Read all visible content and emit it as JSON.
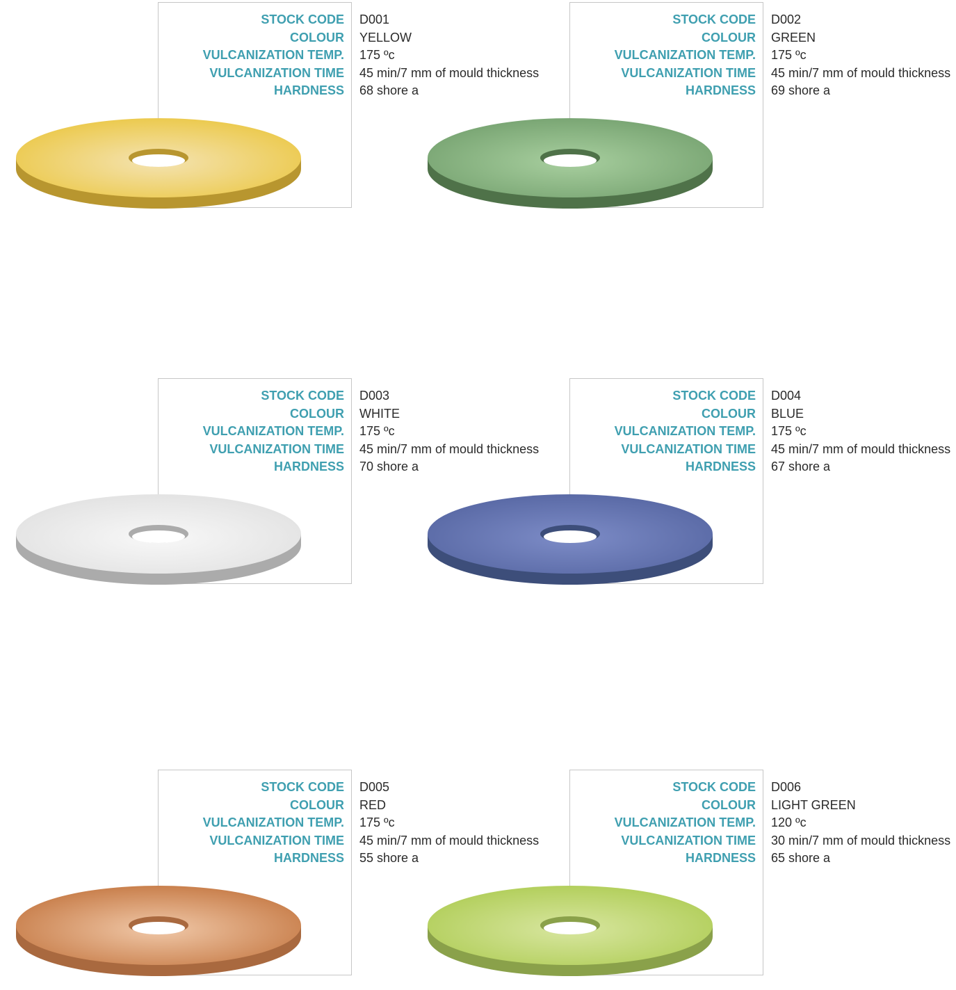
{
  "field_labels": {
    "stock_code": "STOCK CODE",
    "colour": "COLOUR",
    "vulcanization_temp": "VULCANIZATION TEMP.",
    "vulcanization_time": "VULCANIZATION TIME",
    "hardness": "HARDNESS"
  },
  "products": [
    {
      "stock_code": "D001",
      "colour": "YELLOW",
      "vulcanization_temp": "175 ºc",
      "vulcanization_time": "45 min/7 mm of mould thickness",
      "hardness": "68 shore a",
      "swatch": {
        "top": "#ecca4f",
        "light": "#f4e3b2",
        "side": "#b8962f"
      }
    },
    {
      "stock_code": "D002",
      "colour": "GREEN",
      "vulcanization_temp": "175 ºc",
      "vulcanization_time": "45 min/7 mm of mould thickness",
      "hardness": "69 shore a",
      "swatch": {
        "top": "#7aa674",
        "light": "#a8cf9f",
        "side": "#4f7249"
      }
    },
    {
      "stock_code": "D003",
      "colour": "WHITE",
      "vulcanization_temp": "175 ºc",
      "vulcanization_time": "45 min/7 mm of mould thickness",
      "hardness": "70 shore a",
      "swatch": {
        "top": "#e3e3e3",
        "light": "#f8f8f8",
        "side": "#ababab"
      }
    },
    {
      "stock_code": "D004",
      "colour": "BLUE",
      "vulcanization_temp": "175 ºc",
      "vulcanization_time": "45 min/7 mm of mould thickness",
      "hardness": "67 shore a",
      "swatch": {
        "top": "#5a6aa6",
        "light": "#7d8cc7",
        "side": "#3d4e7a"
      }
    },
    {
      "stock_code": "D005",
      "colour": "RED",
      "vulcanization_temp": "175 ºc",
      "vulcanization_time": "45 min/7 mm of mould thickness",
      "hardness": "55 shore a",
      "swatch": {
        "top": "#c9804d",
        "light": "#f0c8a8",
        "side": "#a9693f"
      }
    },
    {
      "stock_code": "D006",
      "colour": "LIGHT GREEN",
      "vulcanization_temp": "120 ºc",
      "vulcanization_time": "30 min/7 mm of mould thickness",
      "hardness": "65 shore a",
      "swatch": {
        "top": "#b3cf5d",
        "light": "#d8e6a0",
        "side": "#8aa14a"
      }
    }
  ]
}
